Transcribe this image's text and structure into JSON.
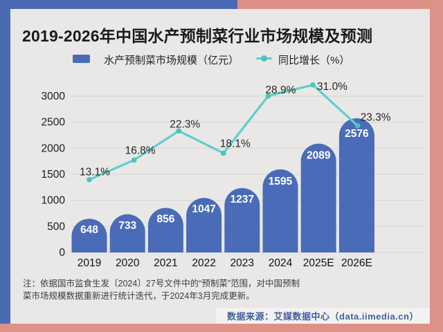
{
  "header": {
    "title": "2019-2026年中国水产预制菜行业市场规模及预测"
  },
  "legend": {
    "bars_label": "水产预制菜市场规模（亿元）",
    "line_label": "同比增长（%）"
  },
  "chart_data": {
    "type": "bar",
    "subtype": "bar-line-combo",
    "categories": [
      "2019",
      "2020",
      "2021",
      "2022",
      "2023",
      "2024",
      "2025E",
      "2026E"
    ],
    "series": [
      {
        "name": "水产预制菜市场规模（亿元）",
        "type": "bar",
        "values": [
          648,
          733,
          856,
          1047,
          1237,
          1595,
          2089,
          2576
        ]
      },
      {
        "name": "同比增长（%）",
        "type": "line",
        "values": [
          13.1,
          16.8,
          22.3,
          18.1,
          28.9,
          31.0,
          23.3
        ],
        "labels": [
          "13.1%",
          "16.8%",
          "22.3%",
          "18.1%",
          "28.9%",
          "31.0%",
          "23.3%"
        ]
      }
    ],
    "y_axis": {
      "ticks": [
        0,
        500,
        1000,
        1500,
        2000,
        2500,
        3000
      ],
      "range": [
        0,
        3000
      ]
    },
    "secondary_axis": {
      "unit": "%",
      "implied_range": [
        0,
        31
      ]
    },
    "grid": true,
    "legend_position": "top"
  },
  "footer": {
    "note_line1": "注：依据国市监食生发〔2024〕27号文件中的“预制菜”范围，对中国预制",
    "note_line2": "菜市场规模数据重新进行统计迭代，于2024年3月完成更新。",
    "source": "数据来源：艾媒数据中心（data.iimedia.cn）"
  },
  "colors": {
    "accent_blue": "#4a6bb4",
    "bar_blue": "#4a6cb8",
    "salmon": "#de9187",
    "card_bg": "#e9e8e6",
    "grid": "#d8d7d5",
    "line_teal": "#5dcfca",
    "dot_teal": "#48c5c0",
    "text_dark": "#1a1a1a",
    "bar_label": "#ffffff",
    "axis_text": "#1b1b1b",
    "pct_text": "#262626",
    "note_gray": "#3c3c3c",
    "source_blue": "#44619f",
    "source_bg": "#f3f2f0"
  }
}
